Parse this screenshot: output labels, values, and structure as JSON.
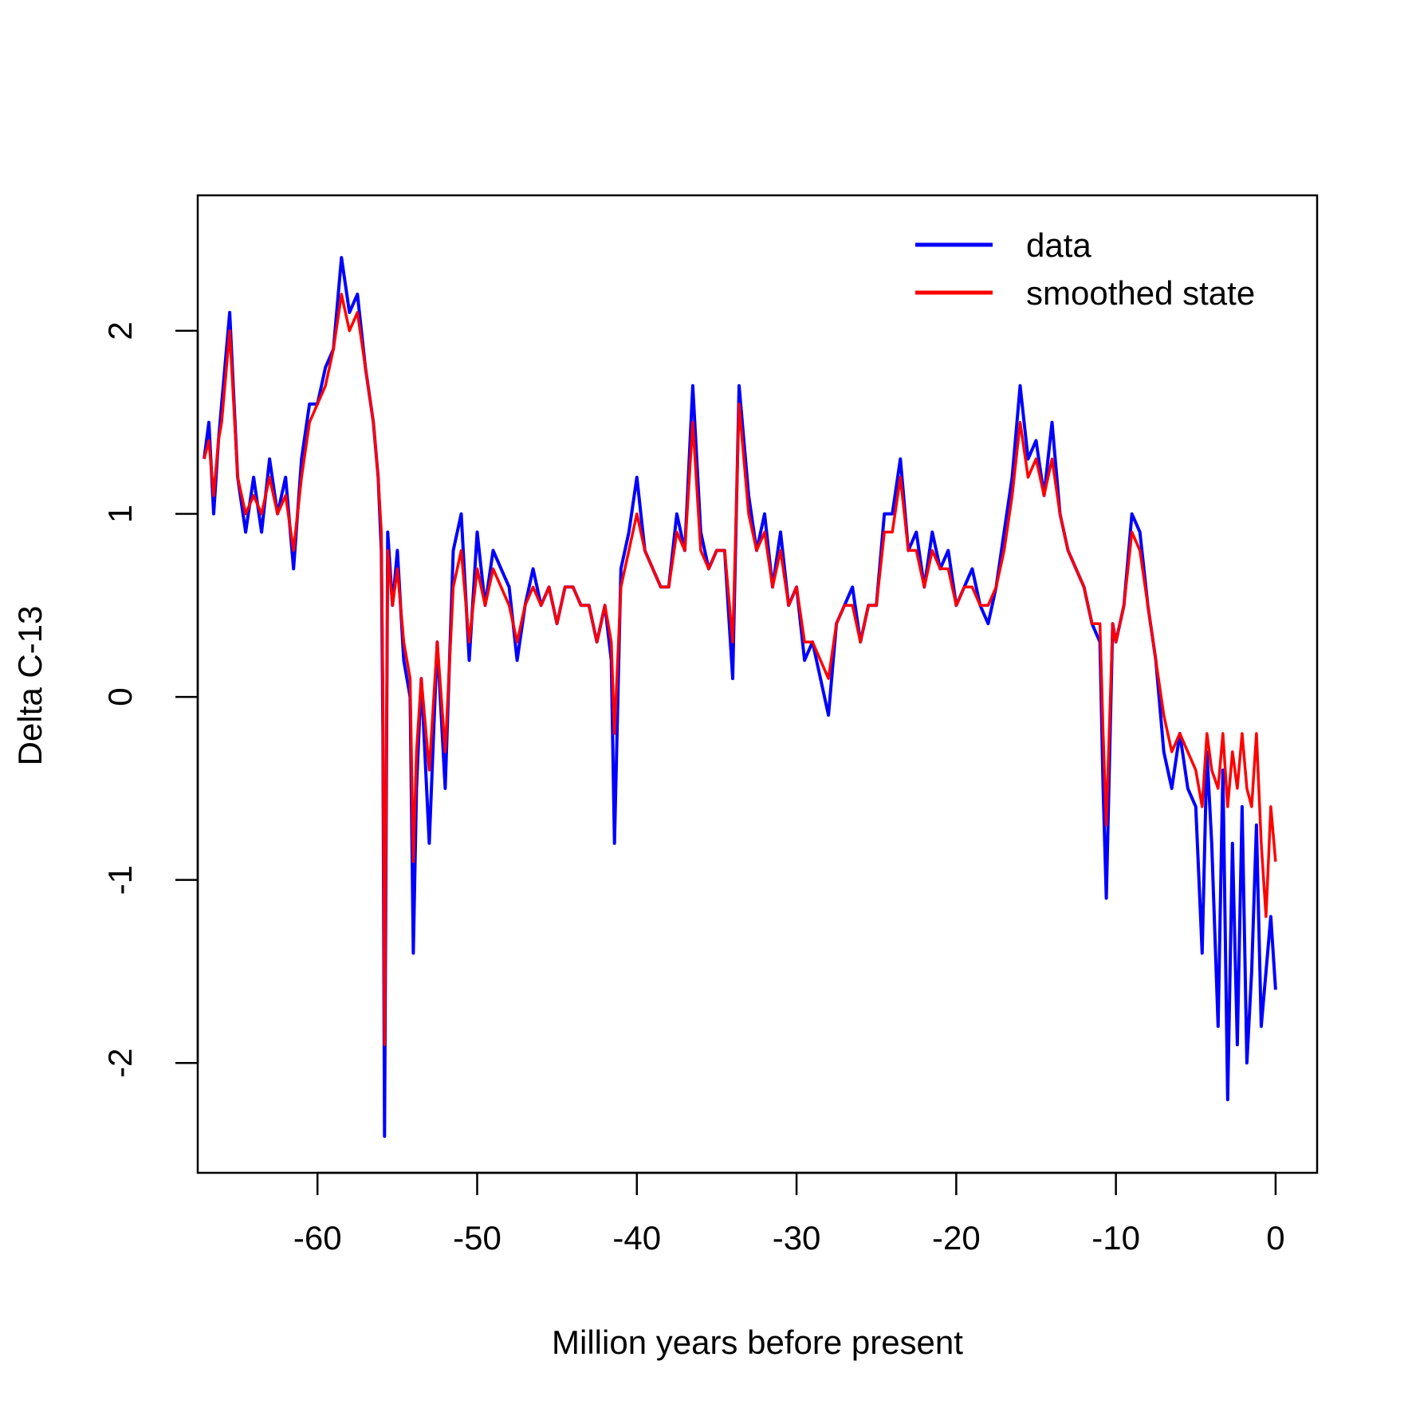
{
  "chart_data": {
    "type": "line",
    "title": "",
    "xlabel": "Million years before present",
    "ylabel": "Delta C-13",
    "xlim": [
      -67.5,
      2.6
    ],
    "ylim": [
      -2.6,
      2.74
    ],
    "xticks": [
      -60,
      -50,
      -40,
      -30,
      -20,
      -10,
      0
    ],
    "xtick_labels": [
      "-60",
      "-50",
      "-40",
      "-30",
      "-20",
      "-10",
      "0"
    ],
    "yticks": [
      -2,
      -1,
      0,
      1,
      2
    ],
    "ytick_labels": [
      "-2",
      "-1",
      "0",
      "1",
      "2"
    ],
    "grid": false,
    "legend_position": "top-right",
    "legend": [
      {
        "name": "data",
        "color": "#0000FF"
      },
      {
        "name": "smoothed state",
        "color": "#FF0000"
      }
    ],
    "series": [
      {
        "name": "data",
        "color": "#0000FF",
        "x": [
          -67.1,
          -66.8,
          -66.5,
          -66.2,
          -66.0,
          -65.5,
          -65.0,
          -64.5,
          -64.0,
          -63.5,
          -63.0,
          -62.5,
          -62.0,
          -61.5,
          -61.0,
          -60.5,
          -60.0,
          -59.5,
          -59.0,
          -58.5,
          -58.0,
          -57.5,
          -57.0,
          -56.5,
          -56.2,
          -56.0,
          -55.9,
          -55.8,
          -55.6,
          -55.3,
          -55.0,
          -54.6,
          -54.2,
          -54.0,
          -53.8,
          -53.5,
          -53.0,
          -52.5,
          -52.0,
          -51.5,
          -51.0,
          -50.5,
          -50.0,
          -49.5,
          -49.0,
          -48.5,
          -48.0,
          -47.5,
          -47.0,
          -46.5,
          -46.0,
          -45.5,
          -45.0,
          -44.5,
          -44.0,
          -43.5,
          -43.0,
          -42.5,
          -42.0,
          -41.6,
          -41.4,
          -41.0,
          -40.5,
          -40.0,
          -39.5,
          -39.0,
          -38.5,
          -38.0,
          -37.5,
          -37.0,
          -36.5,
          -36.0,
          -35.5,
          -35.0,
          -34.5,
          -34.0,
          -33.6,
          -33.0,
          -32.5,
          -32.0,
          -31.5,
          -31.0,
          -30.5,
          -30.0,
          -29.5,
          -29.0,
          -28.5,
          -28.0,
          -27.5,
          -27.0,
          -26.5,
          -26.0,
          -25.5,
          -25.0,
          -24.5,
          -24.0,
          -23.5,
          -23.0,
          -22.5,
          -22.0,
          -21.5,
          -21.0,
          -20.5,
          -20.0,
          -19.5,
          -19.0,
          -18.5,
          -18.0,
          -17.5,
          -17.0,
          -16.5,
          -16.0,
          -15.5,
          -15.0,
          -14.5,
          -14.0,
          -13.5,
          -13.0,
          -12.5,
          -12.0,
          -11.5,
          -11.0,
          -10.8,
          -10.6,
          -10.2,
          -10.0,
          -9.5,
          -9.0,
          -8.5,
          -8.0,
          -7.5,
          -7.0,
          -6.5,
          -6.0,
          -5.5,
          -5.0,
          -4.6,
          -4.3,
          -4.0,
          -3.6,
          -3.3,
          -3.0,
          -2.7,
          -2.4,
          -2.1,
          -1.8,
          -1.5,
          -1.2,
          -0.9,
          -0.6,
          -0.3,
          0.0
        ],
        "y": [
          1.3,
          1.5,
          1.0,
          1.4,
          1.6,
          2.1,
          1.2,
          0.9,
          1.2,
          0.9,
          1.3,
          1.0,
          1.2,
          0.7,
          1.3,
          1.6,
          1.6,
          1.8,
          1.9,
          2.4,
          2.1,
          2.2,
          1.8,
          1.5,
          1.2,
          0.8,
          -0.2,
          -2.4,
          0.9,
          0.5,
          0.8,
          0.2,
          0.0,
          -1.4,
          -0.5,
          0.1,
          -0.8,
          0.3,
          -0.5,
          0.8,
          1.0,
          0.2,
          0.9,
          0.5,
          0.8,
          0.7,
          0.6,
          0.2,
          0.5,
          0.7,
          0.5,
          0.6,
          0.4,
          0.6,
          0.6,
          0.5,
          0.5,
          0.3,
          0.5,
          0.2,
          -0.8,
          0.7,
          0.9,
          1.2,
          0.8,
          0.7,
          0.6,
          0.6,
          1.0,
          0.8,
          1.7,
          0.9,
          0.7,
          0.8,
          0.8,
          0.1,
          1.7,
          1.1,
          0.8,
          1.0,
          0.6,
          0.9,
          0.5,
          0.6,
          0.2,
          0.3,
          0.1,
          -0.1,
          0.4,
          0.5,
          0.6,
          0.3,
          0.5,
          0.5,
          1.0,
          1.0,
          1.3,
          0.8,
          0.9,
          0.6,
          0.9,
          0.7,
          0.8,
          0.5,
          0.6,
          0.7,
          0.5,
          0.4,
          0.6,
          0.9,
          1.2,
          1.7,
          1.3,
          1.4,
          1.1,
          1.5,
          1.0,
          0.8,
          0.7,
          0.6,
          0.4,
          0.3,
          -0.5,
          -1.1,
          0.4,
          0.3,
          0.5,
          1.0,
          0.9,
          0.5,
          0.2,
          -0.3,
          -0.5,
          -0.2,
          -0.5,
          -0.6,
          -1.4,
          -0.3,
          -0.8,
          -1.8,
          -0.4,
          -2.2,
          -0.8,
          -1.9,
          -0.6,
          -2.0,
          -1.5,
          -0.7,
          -1.8,
          -1.5,
          -1.2,
          -1.6
        ]
      },
      {
        "name": "smoothed state",
        "color": "#FF0000",
        "x": [
          -67.1,
          -66.8,
          -66.5,
          -66.2,
          -66.0,
          -65.5,
          -65.0,
          -64.5,
          -64.0,
          -63.5,
          -63.0,
          -62.5,
          -62.0,
          -61.5,
          -61.0,
          -60.5,
          -60.0,
          -59.5,
          -59.0,
          -58.5,
          -58.0,
          -57.5,
          -57.0,
          -56.5,
          -56.2,
          -56.0,
          -55.9,
          -55.8,
          -55.6,
          -55.3,
          -55.0,
          -54.6,
          -54.2,
          -54.0,
          -53.8,
          -53.5,
          -53.0,
          -52.5,
          -52.0,
          -51.5,
          -51.0,
          -50.5,
          -50.0,
          -49.5,
          -49.0,
          -48.5,
          -48.0,
          -47.5,
          -47.0,
          -46.5,
          -46.0,
          -45.5,
          -45.0,
          -44.5,
          -44.0,
          -43.5,
          -43.0,
          -42.5,
          -42.0,
          -41.6,
          -41.4,
          -41.0,
          -40.5,
          -40.0,
          -39.5,
          -39.0,
          -38.5,
          -38.0,
          -37.5,
          -37.0,
          -36.5,
          -36.0,
          -35.5,
          -35.0,
          -34.5,
          -34.0,
          -33.6,
          -33.0,
          -32.5,
          -32.0,
          -31.5,
          -31.0,
          -30.5,
          -30.0,
          -29.5,
          -29.0,
          -28.5,
          -28.0,
          -27.5,
          -27.0,
          -26.5,
          -26.0,
          -25.5,
          -25.0,
          -24.5,
          -24.0,
          -23.5,
          -23.0,
          -22.5,
          -22.0,
          -21.5,
          -21.0,
          -20.5,
          -20.0,
          -19.5,
          -19.0,
          -18.5,
          -18.0,
          -17.5,
          -17.0,
          -16.5,
          -16.0,
          -15.5,
          -15.0,
          -14.5,
          -14.0,
          -13.5,
          -13.0,
          -12.5,
          -12.0,
          -11.5,
          -11.0,
          -10.8,
          -10.6,
          -10.2,
          -10.0,
          -9.5,
          -9.0,
          -8.5,
          -8.0,
          -7.5,
          -7.0,
          -6.5,
          -6.0,
          -5.5,
          -5.0,
          -4.6,
          -4.3,
          -4.0,
          -3.6,
          -3.3,
          -3.0,
          -2.7,
          -2.4,
          -2.1,
          -1.8,
          -1.5,
          -1.2,
          -0.9,
          -0.6,
          -0.3,
          0.0
        ],
        "y": [
          1.3,
          1.4,
          1.1,
          1.4,
          1.5,
          2.0,
          1.2,
          1.0,
          1.1,
          1.0,
          1.2,
          1.0,
          1.1,
          0.8,
          1.2,
          1.5,
          1.6,
          1.7,
          1.9,
          2.2,
          2.0,
          2.1,
          1.8,
          1.5,
          1.2,
          0.9,
          0.0,
          -1.9,
          0.8,
          0.5,
          0.7,
          0.3,
          0.1,
          -0.9,
          -0.3,
          0.1,
          -0.4,
          0.3,
          -0.3,
          0.6,
          0.8,
          0.3,
          0.7,
          0.5,
          0.7,
          0.6,
          0.5,
          0.3,
          0.5,
          0.6,
          0.5,
          0.6,
          0.4,
          0.6,
          0.6,
          0.5,
          0.5,
          0.3,
          0.5,
          0.3,
          -0.2,
          0.6,
          0.8,
          1.0,
          0.8,
          0.7,
          0.6,
          0.6,
          0.9,
          0.8,
          1.5,
          0.8,
          0.7,
          0.8,
          0.8,
          0.3,
          1.6,
          1.0,
          0.8,
          0.9,
          0.6,
          0.8,
          0.5,
          0.6,
          0.3,
          0.3,
          0.2,
          0.1,
          0.4,
          0.5,
          0.5,
          0.3,
          0.5,
          0.5,
          0.9,
          0.9,
          1.2,
          0.8,
          0.8,
          0.6,
          0.8,
          0.7,
          0.7,
          0.5,
          0.6,
          0.6,
          0.5,
          0.5,
          0.6,
          0.8,
          1.1,
          1.5,
          1.2,
          1.3,
          1.1,
          1.3,
          1.0,
          0.8,
          0.7,
          0.6,
          0.4,
          0.4,
          -0.2,
          -0.7,
          0.4,
          0.3,
          0.5,
          0.9,
          0.8,
          0.5,
          0.2,
          -0.1,
          -0.3,
          -0.2,
          -0.3,
          -0.4,
          -0.6,
          -0.2,
          -0.4,
          -0.5,
          -0.2,
          -0.6,
          -0.3,
          -0.5,
          -0.2,
          -0.5,
          -0.6,
          -0.2,
          -0.8,
          -1.2,
          -0.6,
          -0.9
        ]
      }
    ]
  }
}
